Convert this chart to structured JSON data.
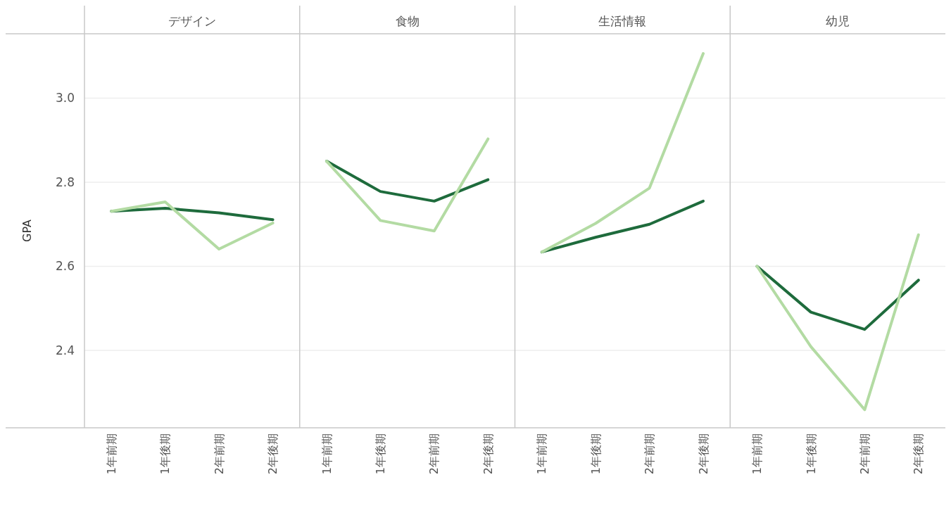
{
  "chart_data": [
    {
      "type": "line",
      "title": "デザイン",
      "ylabel": "GPA",
      "categories": [
        "1年前期",
        "1年後期",
        "2年前期",
        "2年後期"
      ],
      "ylim": [
        2.216,
        3.153
      ],
      "yticks": [
        2.4,
        2.6,
        2.8,
        {
          "value": 3.0,
          "label": "3.0"
        }
      ],
      "grid": "y",
      "series": [
        {
          "color": "#1e6b3c",
          "values": [
            2.731,
            2.738,
            2.727,
            2.711
          ]
        },
        {
          "color": "#b3dba3",
          "values": [
            2.731,
            2.753,
            2.641,
            2.703
          ]
        }
      ]
    },
    {
      "type": "line",
      "title": "食物",
      "categories": [
        "1年前期",
        "1年後期",
        "2年前期",
        "2年後期"
      ],
      "ylim": [
        2.216,
        3.153
      ],
      "yticks": [
        {
          "value": 2.4,
          "label": null
        },
        {
          "value": 2.6,
          "label": null
        },
        {
          "value": 2.8,
          "label": null
        },
        {
          "value": 3.0,
          "label": null
        }
      ],
      "grid": "y",
      "tick_labels": "x",
      "series": [
        {
          "color": "#1e6b3c",
          "values": [
            2.85,
            2.778,
            2.755,
            2.806
          ]
        },
        {
          "color": "#b3dba3",
          "values": [
            2.85,
            2.709,
            2.684,
            2.903
          ]
        }
      ]
    },
    {
      "type": "line",
      "title": "生活情報",
      "categories": [
        "1年前期",
        "1年後期",
        "2年前期",
        "2年後期"
      ],
      "ylim": [
        2.216,
        3.153
      ],
      "yticks": [
        {
          "value": 2.4,
          "label": null
        },
        {
          "value": 2.6,
          "label": null
        },
        {
          "value": 2.8,
          "label": null
        },
        {
          "value": 3.0,
          "label": null
        }
      ],
      "grid": "y",
      "tick_labels": "x",
      "series": [
        {
          "color": "#1e6b3c",
          "values": [
            2.634,
            2.669,
            2.7,
            2.755
          ]
        },
        {
          "color": "#b3dba3",
          "values": [
            2.634,
            2.702,
            2.786,
            3.106
          ]
        }
      ]
    },
    {
      "type": "line",
      "title": "幼児",
      "categories": [
        "1年前期",
        "1年後期",
        "2年前期",
        "2年後期"
      ],
      "ylim": [
        2.216,
        3.153
      ],
      "yticks": [
        {
          "value": 2.4,
          "label": null
        },
        {
          "value": 2.6,
          "label": null
        },
        {
          "value": 2.8,
          "label": null
        },
        {
          "value": 3.0,
          "label": null
        }
      ],
      "grid": "y",
      "tick_labels": "x",
      "series": [
        {
          "color": "#1e6b3c",
          "values": [
            2.6,
            2.491,
            2.45,
            2.567
          ]
        },
        {
          "color": "#b3dba3",
          "values": [
            2.6,
            2.409,
            2.259,
            2.675
          ]
        }
      ]
    }
  ]
}
